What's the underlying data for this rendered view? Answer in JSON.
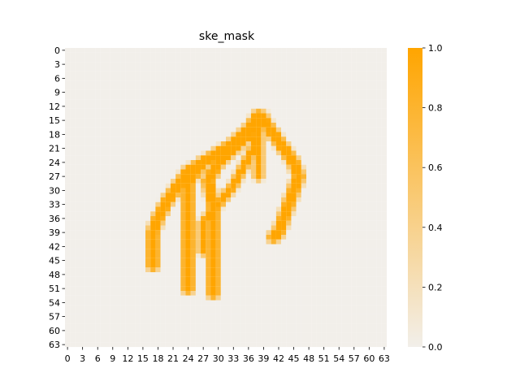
{
  "chart_data": {
    "type": "heatmap",
    "title": "ske_mask",
    "grid_size": 64,
    "x_tick_labels": [
      "0",
      "3",
      "6",
      "9",
      "12",
      "15",
      "18",
      "21",
      "24",
      "27",
      "30",
      "33",
      "36",
      "39",
      "42",
      "45",
      "48",
      "51",
      "54",
      "57",
      "60",
      "63"
    ],
    "y_tick_labels": [
      "0",
      "3",
      "6",
      "9",
      "12",
      "15",
      "18",
      "21",
      "24",
      "27",
      "30",
      "33",
      "36",
      "39",
      "42",
      "45",
      "48",
      "51",
      "54",
      "57",
      "60",
      "63"
    ],
    "colorbar": {
      "min": 0.0,
      "max": 1.0,
      "tick_labels": [
        "0.0",
        "0.2",
        "0.4",
        "0.6",
        "0.8",
        "1.0"
      ],
      "low_color": "#f2efea",
      "high_color": "#ffa500"
    },
    "value_default": 0.0,
    "strokes": [
      {
        "name": "left-stroke",
        "value": 1.0,
        "width": 2.6,
        "points": [
          [
            17,
            46
          ],
          [
            17,
            39
          ],
          [
            18,
            36
          ],
          [
            20,
            32
          ],
          [
            22,
            29
          ],
          [
            24,
            26
          ],
          [
            27,
            24
          ],
          [
            30,
            22
          ],
          [
            33,
            20
          ],
          [
            36,
            17
          ],
          [
            38,
            14
          ]
        ]
      },
      {
        "name": "middle-stroke-a",
        "value": 1.0,
        "width": 2.6,
        "points": [
          [
            24,
            51
          ],
          [
            24,
            28
          ],
          [
            27,
            24
          ]
        ]
      },
      {
        "name": "middle-stroke-b",
        "value": 1.0,
        "width": 2.6,
        "points": [
          [
            29,
            52
          ],
          [
            29,
            33
          ],
          [
            28,
            28
          ],
          [
            30,
            24
          ],
          [
            33,
            21
          ],
          [
            36,
            18
          ],
          [
            38,
            15
          ]
        ]
      },
      {
        "name": "inner-stroke",
        "value": 1.0,
        "width": 2.0,
        "points": [
          [
            27,
            43
          ],
          [
            27,
            37
          ],
          [
            30,
            33
          ],
          [
            33,
            29
          ],
          [
            35,
            25
          ],
          [
            37,
            21
          ],
          [
            38,
            17
          ],
          [
            39,
            15
          ]
        ]
      },
      {
        "name": "right-vertical",
        "value": 1.0,
        "width": 2.0,
        "points": [
          [
            38,
            27
          ],
          [
            38,
            17
          ],
          [
            39,
            14
          ]
        ]
      },
      {
        "name": "right-arc",
        "value": 1.0,
        "width": 2.6,
        "points": [
          [
            39,
            15
          ],
          [
            41,
            18
          ],
          [
            43,
            21
          ],
          [
            45,
            24
          ],
          [
            46,
            27
          ],
          [
            45,
            30
          ],
          [
            44,
            33
          ],
          [
            43,
            36
          ],
          [
            42,
            39
          ],
          [
            41,
            40
          ]
        ]
      }
    ]
  }
}
